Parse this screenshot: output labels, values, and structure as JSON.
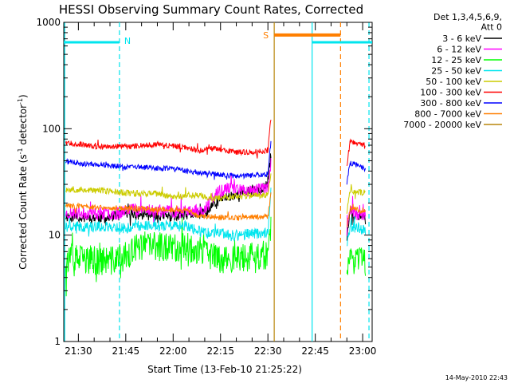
{
  "chart_data": {
    "type": "line",
    "title": "HESSI Observing Summary Count Rates, Corrected",
    "xlabel": "Start Time (13-Feb-10 21:25:22)",
    "ylabel_main": "Corrected Count Rate (s",
    "ylabel_sup1": "-1",
    "ylabel_mid": " detector",
    "ylabel_sup2": "-1",
    "ylabel_end": ")",
    "yscale": "log",
    "ylim": [
      1,
      1000
    ],
    "xlim": [
      "21:25:22",
      "23:03:00"
    ],
    "x_ticks": [
      "21:30",
      "21:45",
      "22:00",
      "22:15",
      "22:30",
      "22:45",
      "23:00"
    ],
    "y_ticks": [
      {
        "value": 1,
        "label": "1"
      },
      {
        "value": 10,
        "label": "10"
      },
      {
        "value": 100,
        "label": "100"
      },
      {
        "value": 1000,
        "label": "1000"
      }
    ],
    "legend_header": [
      "Det 1,3,4,5,6,9,",
      "Att 0"
    ],
    "legend_position": "right",
    "stamp": "14-May-2010 22:43",
    "colors": {
      "night": "#00e5ee",
      "saa": "#ff7f00",
      "flare_line": "#b8860b"
    },
    "night_label": "N",
    "saa_label": "S",
    "night_bars": [
      {
        "start": "21:25:22",
        "end": "21:43:00",
        "level": 650
      },
      {
        "start": "22:44:00",
        "end": "23:03:00",
        "level": 650
      }
    ],
    "saa_bar": {
      "start": "22:32:00",
      "end": "22:53:00",
      "level": 760
    },
    "vertical_lines": [
      {
        "time": "21:25:40",
        "color": "night",
        "style": "solid"
      },
      {
        "time": "21:43:00",
        "color": "night",
        "style": "dashed"
      },
      {
        "time": "22:32:00",
        "color": "flare_line",
        "style": "solid"
      },
      {
        "time": "22:44:00",
        "color": "night",
        "style": "solid"
      },
      {
        "time": "22:53:00",
        "color": "saa",
        "style": "dashed"
      },
      {
        "time": "23:02:00",
        "color": "night",
        "style": "dashed"
      }
    ],
    "data_gap": [
      "22:32:00",
      "22:55:00"
    ],
    "series": [
      {
        "name": "3 - 6 keV",
        "color": "#000000",
        "noise": 0.05,
        "seed": 11,
        "points": [
          [
            "21:26",
            15
          ],
          [
            "21:40",
            14.5
          ],
          [
            "21:45",
            16
          ],
          [
            "21:50",
            15.5
          ],
          [
            "22:00",
            15
          ],
          [
            "22:10",
            16
          ],
          [
            "22:15",
            22
          ],
          [
            "22:22",
            25
          ],
          [
            "22:28",
            27
          ],
          [
            "22:30",
            30
          ],
          [
            "22:31",
            60
          ]
        ],
        "post": [
          [
            "22:55",
            9
          ],
          [
            "22:56",
            16
          ],
          [
            "22:59",
            15
          ],
          [
            "23:01",
            14
          ]
        ]
      },
      {
        "name": "6 - 12 keV",
        "color": "#ff00ff",
        "noise": 0.06,
        "seed": 23,
        "points": [
          [
            "21:26",
            16
          ],
          [
            "21:43",
            16
          ],
          [
            "21:45",
            18
          ],
          [
            "21:55",
            17
          ],
          [
            "22:00",
            16.5
          ],
          [
            "22:10",
            17
          ],
          [
            "22:13",
            24
          ],
          [
            "22:18",
            28
          ],
          [
            "22:24",
            26
          ],
          [
            "22:30",
            28
          ],
          [
            "22:31",
            50
          ]
        ],
        "post": [
          [
            "22:55",
            10
          ],
          [
            "22:56",
            17
          ],
          [
            "22:59",
            15
          ],
          [
            "23:01",
            15
          ]
        ]
      },
      {
        "name": "12 - 25 keV",
        "color": "#00ff00",
        "noise": 0.14,
        "seed": 37,
        "points": [
          [
            "21:26",
            6
          ],
          [
            "21:40",
            5.7
          ],
          [
            "21:45",
            6.3
          ],
          [
            "21:50",
            8
          ],
          [
            "22:05",
            7.6
          ],
          [
            "22:10",
            6.8
          ],
          [
            "22:15",
            6
          ],
          [
            "22:25",
            6.2
          ],
          [
            "22:30",
            6.5
          ],
          [
            "22:31",
            12
          ]
        ],
        "post": [
          [
            "22:55",
            4.5
          ],
          [
            "22:56",
            6
          ],
          [
            "22:59",
            5.8
          ],
          [
            "23:01",
            5.5
          ]
        ]
      },
      {
        "name": "25 - 50 keV",
        "color": "#00e5ee",
        "noise": 0.05,
        "seed": 41,
        "points": [
          [
            "21:26",
            12
          ],
          [
            "21:40",
            12
          ],
          [
            "21:45",
            11.5
          ],
          [
            "21:50",
            12.5
          ],
          [
            "22:05",
            12
          ],
          [
            "22:10",
            10.5
          ],
          [
            "22:20",
            10
          ],
          [
            "22:30",
            10.5
          ],
          [
            "22:31",
            30
          ]
        ],
        "post": [
          [
            "22:55",
            8
          ],
          [
            "22:56",
            12
          ],
          [
            "22:59",
            11.5
          ],
          [
            "23:01",
            11
          ]
        ]
      },
      {
        "name": "50 - 100 keV",
        "color": "#cccc00",
        "noise": 0.03,
        "seed": 53,
        "points": [
          [
            "21:26",
            27
          ],
          [
            "21:40",
            26
          ],
          [
            "21:45",
            25
          ],
          [
            "21:55",
            24.5
          ],
          [
            "22:00",
            23
          ],
          [
            "22:08",
            24
          ],
          [
            "22:11",
            22
          ],
          [
            "22:20",
            23
          ],
          [
            "22:30",
            24
          ],
          [
            "22:31",
            40
          ]
        ],
        "post": [
          [
            "22:55",
            16
          ],
          [
            "22:56",
            26
          ],
          [
            "22:59",
            25
          ],
          [
            "23:01",
            25
          ]
        ]
      },
      {
        "name": "100 - 300 keV",
        "color": "#ff0000",
        "noise": 0.025,
        "seed": 67,
        "points": [
          [
            "21:26",
            75
          ],
          [
            "21:35",
            68
          ],
          [
            "21:45",
            68
          ],
          [
            "21:55",
            72
          ],
          [
            "22:05",
            66
          ],
          [
            "22:08",
            62
          ],
          [
            "22:12",
            65
          ],
          [
            "22:20",
            60
          ],
          [
            "22:30",
            62
          ],
          [
            "22:31",
            130
          ]
        ],
        "post": [
          [
            "22:55",
            45
          ],
          [
            "22:56",
            75
          ],
          [
            "22:59",
            72
          ],
          [
            "23:01",
            70
          ]
        ]
      },
      {
        "name": "300 - 800 keV",
        "color": "#0000ff",
        "noise": 0.025,
        "seed": 71,
        "points": [
          [
            "21:26",
            49
          ],
          [
            "21:35",
            46
          ],
          [
            "21:45",
            44
          ],
          [
            "22:00",
            42
          ],
          [
            "22:10",
            38
          ],
          [
            "22:20",
            36
          ],
          [
            "22:30",
            37
          ],
          [
            "22:31",
            80
          ]
        ],
        "post": [
          [
            "22:55",
            30
          ],
          [
            "22:56",
            48
          ],
          [
            "22:59",
            44
          ],
          [
            "23:01",
            42
          ]
        ]
      },
      {
        "name": "800 - 7000 keV",
        "color": "#ff7f00",
        "noise": 0.025,
        "seed": 83,
        "points": [
          [
            "21:26",
            19
          ],
          [
            "21:40",
            18
          ],
          [
            "21:45",
            18
          ],
          [
            "21:55",
            17.5
          ],
          [
            "22:05",
            17
          ],
          [
            "22:08",
            15
          ],
          [
            "22:20",
            14.5
          ],
          [
            "22:30",
            15
          ],
          [
            "22:31",
            25
          ]
        ],
        "post": [
          [
            "22:55",
            12
          ],
          [
            "22:56",
            18
          ],
          [
            "22:59",
            17
          ],
          [
            "23:01",
            17
          ]
        ]
      },
      {
        "name": "7000 - 20000 keV",
        "color": "#b8860b",
        "noise": 0.0,
        "seed": 97,
        "points": [],
        "post": []
      }
    ]
  }
}
